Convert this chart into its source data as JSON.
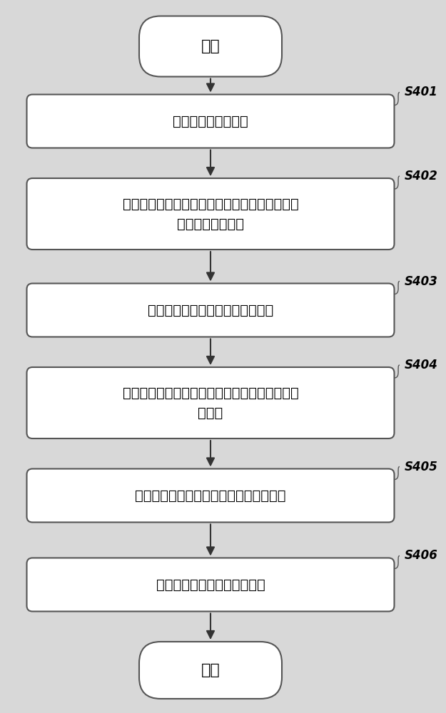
{
  "bg_color": "#d8d8d8",
  "box_color": "#ffffff",
  "box_edge_color": "#555555",
  "text_color": "#000000",
  "arrow_color": "#333333",
  "start_label": "开始",
  "end_label": "结束",
  "steps": [
    {
      "label": "去除宫颈图像的噪声",
      "tag": "S401"
    },
    {
      "label": "对上述去除噪声的图像构造模板进行粗分割，以\n分割出细胞质区域",
      "tag": "S402"
    },
    {
      "label": "对分割出的细胞质区域计算超像素",
      "tag": "S403"
    },
    {
      "label": "对上述计算超像素的细胞质区域采用卷积神经网\n络分类",
      "tag": "S404"
    },
    {
      "label": "构造细胞核模板，并对细胞核进行粗分割",
      "tag": "S405"
    },
    {
      "label": "对粗分割后的细胞核进行修正",
      "tag": "S406"
    }
  ],
  "font_size_main": 14,
  "font_size_tag": 12
}
